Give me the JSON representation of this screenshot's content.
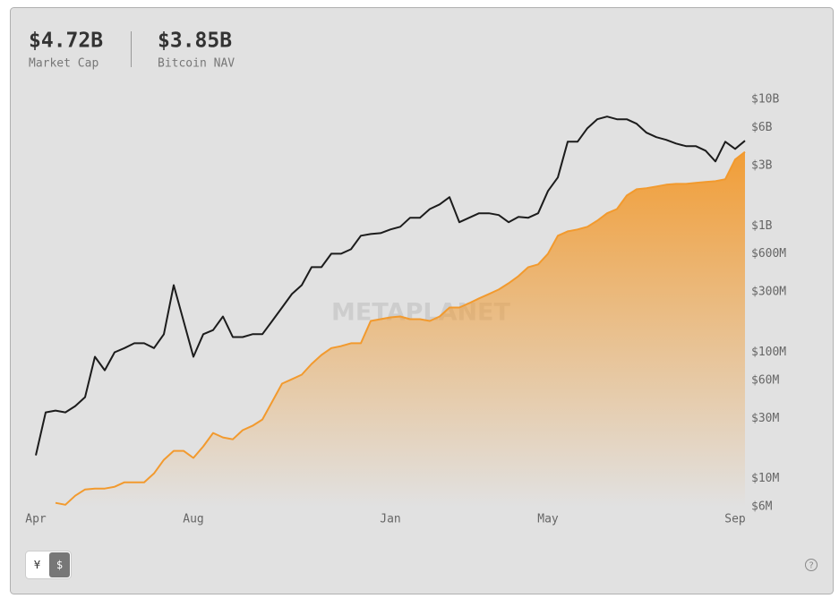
{
  "header": {
    "stats": [
      {
        "value": "$4.72B",
        "label": "Market Cap"
      },
      {
        "value": "$3.85B",
        "label": "Bitcoin NAV"
      }
    ]
  },
  "chart_data": {
    "type": "line",
    "watermark": "METAPLANET",
    "categories": [
      "Apr",
      null,
      null,
      null,
      null,
      null,
      null,
      null,
      null,
      null,
      null,
      null,
      null,
      null,
      null,
      null,
      "Aug",
      null,
      null,
      null,
      null,
      null,
      null,
      null,
      null,
      null,
      null,
      null,
      null,
      null,
      null,
      null,
      null,
      null,
      null,
      null,
      "Jan",
      null,
      null,
      null,
      null,
      null,
      null,
      null,
      null,
      null,
      null,
      null,
      null,
      null,
      null,
      null,
      "May",
      null,
      null,
      null,
      null,
      null,
      null,
      null,
      null,
      null,
      null,
      null,
      null,
      null,
      null,
      null,
      null,
      null,
      null,
      "Sep",
      null
    ],
    "series": [
      {
        "color": "#1c1c1c",
        "values": [
          15300000,
          33500000,
          34600000,
          33500000,
          37500000,
          44200000,
          92200000,
          72100000,
          100000000,
          108000000,
          118000000,
          118000000,
          108000000,
          139000000,
          340000000,
          177000000,
          92200000,
          139000000,
          150000000,
          192000000,
          132000000,
          132000000,
          139000000,
          139000000,
          177000000,
          226000000,
          289000000,
          340000000,
          472000000,
          472000000,
          603000000,
          603000000,
          654000000,
          836000000,
          863000000,
          877000000,
          937000000,
          984000000,
          1160000000,
          1160000000,
          1360000000,
          1480000000,
          1690000000,
          1070000000,
          1160000000,
          1260000000,
          1260000000,
          1220000000,
          1070000000,
          1180000000,
          1160000000,
          1260000000,
          1890000000,
          2420000000,
          4640000000,
          4640000000,
          5930000000,
          6980000000,
          7330000000,
          6980000000,
          6980000000,
          6440000000,
          5470000000,
          5040000000,
          4800000000,
          4490000000,
          4280000000,
          4280000000,
          3940000000,
          3240000000,
          4640000000,
          4070000000,
          4720000000
        ]
      },
      {
        "color": "#f29a2e",
        "area": true,
        "values": [
          null,
          null,
          6440000,
          6220000,
          7330000,
          8220000,
          8360000,
          8360000,
          8630000,
          9370000,
          9370000,
          9370000,
          11000000,
          14100000,
          16600000,
          16600000,
          14600000,
          18000000,
          23000000,
          21200000,
          20500000,
          24200000,
          26200000,
          29400000,
          40700000,
          56500000,
          61200000,
          66500000,
          80900000,
          95300000,
          108000000,
          112000000,
          118000000,
          118000000,
          177000000,
          183000000,
          189000000,
          192000000,
          183000000,
          183000000,
          177000000,
          192000000,
          226000000,
          226000000,
          245000000,
          267000000,
          289000000,
          314000000,
          352000000,
          401000000,
          472000000,
          496000000,
          603000000,
          836000000,
          906000000,
          937000000,
          984000000,
          1100000000,
          1260000000,
          1360000000,
          1740000000,
          1950000000,
          1990000000,
          2050000000,
          2120000000,
          2150000000,
          2150000000,
          2190000000,
          2230000000,
          2260000000,
          2340000000,
          3350000000,
          3850000000
        ]
      }
    ],
    "ylim": [
      6000000,
      12000000000
    ],
    "log_scale": true,
    "yticks": [
      {
        "value": 10000000000,
        "label": "$10B"
      },
      {
        "value": 6000000000,
        "label": "$6B"
      },
      {
        "value": 3000000000,
        "label": "$3B"
      },
      {
        "value": 1000000000,
        "label": "$1B"
      },
      {
        "value": 600000000,
        "label": "$600M"
      },
      {
        "value": 300000000,
        "label": "$300M"
      },
      {
        "value": 100000000,
        "label": "$100M"
      },
      {
        "value": 60000000,
        "label": "$60M"
      },
      {
        "value": 30000000,
        "label": "$30M"
      },
      {
        "value": 10000000,
        "label": "$10M"
      },
      {
        "value": 6000000,
        "label": "$6M"
      }
    ]
  },
  "controls": {
    "currency_options": [
      "¥",
      "$"
    ],
    "selected": 1,
    "help": "?"
  }
}
